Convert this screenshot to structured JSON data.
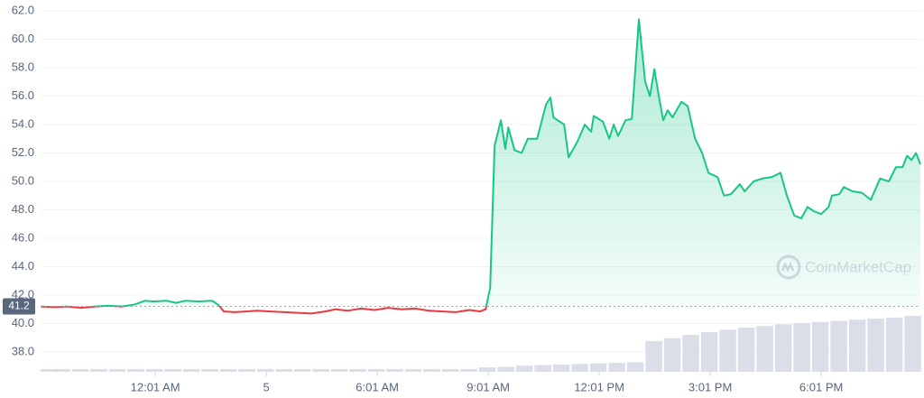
{
  "chart_data": {
    "type": "line",
    "ylim": [
      36.6,
      62
    ],
    "yticks": [
      {
        "value": 38,
        "label": "38.0"
      },
      {
        "value": 40,
        "label": "40.0"
      },
      {
        "value": 42,
        "label": "42.0"
      },
      {
        "value": 44,
        "label": "44.0"
      },
      {
        "value": 46,
        "label": "46.0"
      },
      {
        "value": 48,
        "label": "48.0"
      },
      {
        "value": 50,
        "label": "50.0"
      },
      {
        "value": 52,
        "label": "52.0"
      },
      {
        "value": 54,
        "label": "54.0"
      },
      {
        "value": 56,
        "label": "56.0"
      },
      {
        "value": 58,
        "label": "58.0"
      },
      {
        "value": 60,
        "label": "60.0"
      },
      {
        "value": 62,
        "label": "62.0"
      }
    ],
    "xlim": [
      -3.1,
      20.68
    ],
    "xticks": [
      {
        "value": 0,
        "label": "12:01 AM"
      },
      {
        "value": 3,
        "label": "5"
      },
      {
        "value": 6,
        "label": "6:01 AM"
      },
      {
        "value": 9,
        "label": "9:01 AM"
      },
      {
        "value": 12,
        "label": "12:01 PM"
      },
      {
        "value": 15,
        "label": "3:01 PM"
      },
      {
        "value": 18,
        "label": "6:01 PM"
      }
    ],
    "grid": true,
    "reference": 41.2,
    "down_color": "#ea3943",
    "watermark": "CoinMarketCap",
    "x": [
      -3.1,
      -2.73,
      -2.37,
      -2.0,
      -1.63,
      -1.27,
      -0.9,
      -0.54,
      -0.29,
      -0.05,
      0.32,
      0.56,
      0.8,
      1.17,
      1.54,
      1.71,
      1.85,
      2.15,
      2.44,
      2.76,
      3.12,
      3.49,
      3.85,
      4.22,
      4.59,
      4.88,
      5.2,
      5.56,
      5.93,
      6.29,
      6.66,
      7.02,
      7.39,
      7.76,
      8.12,
      8.49,
      8.78,
      8.93,
      9.05,
      9.17,
      9.34,
      9.46,
      9.54,
      9.71,
      9.9,
      10.07,
      10.32,
      10.56,
      10.68,
      10.76,
      11.05,
      11.17,
      11.41,
      11.61,
      11.78,
      11.85,
      12.1,
      12.27,
      12.39,
      12.51,
      12.71,
      12.88,
      13.07,
      13.24,
      13.37,
      13.49,
      13.61,
      13.73,
      13.85,
      13.98,
      14.22,
      14.39,
      14.59,
      14.78,
      14.95,
      15.2,
      15.37,
      15.56,
      15.8,
      15.93,
      16.17,
      16.41,
      16.66,
      16.9,
      17.07,
      17.27,
      17.46,
      17.63,
      17.8,
      18.0,
      18.2,
      18.29,
      18.49,
      18.61,
      18.85,
      19.1,
      19.34,
      19.59,
      19.83,
      20.02,
      20.2,
      20.32,
      20.44,
      20.56,
      20.68
    ],
    "series": [
      {
        "color": "#16c784",
        "values": [
          41.2,
          41.15,
          41.2,
          41.1,
          41.2,
          41.25,
          41.2,
          41.35,
          41.6,
          41.55,
          41.6,
          41.45,
          41.6,
          41.55,
          41.6,
          41.3,
          40.85,
          40.8,
          40.85,
          40.9,
          40.85,
          40.8,
          40.75,
          40.7,
          40.85,
          41.0,
          40.9,
          41.05,
          40.95,
          41.1,
          41.0,
          41.05,
          40.9,
          40.85,
          40.8,
          40.95,
          40.85,
          41.0,
          42.5,
          52.5,
          54.3,
          52.3,
          53.8,
          52.2,
          52.0,
          53.0,
          53.0,
          55.4,
          55.9,
          54.5,
          54.0,
          51.7,
          52.8,
          54.0,
          53.5,
          54.6,
          54.2,
          53.0,
          54.0,
          53.2,
          54.3,
          54.4,
          61.4,
          57.0,
          56.0,
          57.9,
          56.0,
          54.3,
          55.0,
          54.5,
          55.6,
          55.3,
          53.0,
          52.0,
          50.6,
          50.3,
          49.0,
          49.1,
          49.8,
          49.3,
          50.0,
          50.2,
          50.3,
          50.6,
          49.0,
          47.6,
          47.4,
          48.2,
          47.9,
          47.7,
          48.2,
          49.0,
          49.1,
          49.6,
          49.3,
          49.2,
          48.7,
          50.2,
          50.0,
          51.0,
          51.0,
          51.8,
          51.5,
          52.0,
          51.2
        ]
      }
    ],
    "volume": {
      "color": "#cfd6e4",
      "y2lim": [
        0,
        100
      ],
      "x": [
        -3,
        -2.5,
        -2,
        -1.5,
        -1,
        -0.5,
        0,
        0.5,
        1,
        1.5,
        2,
        2.5,
        3,
        3.5,
        4,
        4.5,
        5,
        5.5,
        6,
        6.5,
        7,
        7.5,
        8,
        8.5,
        9,
        9.5,
        10,
        10.5,
        11,
        11.5,
        12,
        12.5,
        13,
        13.5,
        14,
        14.5,
        15,
        15.5,
        16,
        16.5,
        17,
        17.5,
        18,
        18.5,
        19,
        19.5,
        20,
        20.5
      ],
      "values": [
        5,
        5,
        5,
        5,
        5,
        5,
        5,
        5,
        5,
        5,
        5,
        5,
        5,
        5,
        5,
        5,
        5,
        5,
        5,
        5,
        5,
        5,
        5,
        5,
        8,
        9,
        11,
        12,
        13,
        14,
        15,
        16,
        17,
        55,
        60,
        66,
        71,
        75,
        79,
        82,
        85,
        87,
        89,
        91,
        93,
        95,
        97,
        100
      ]
    }
  }
}
